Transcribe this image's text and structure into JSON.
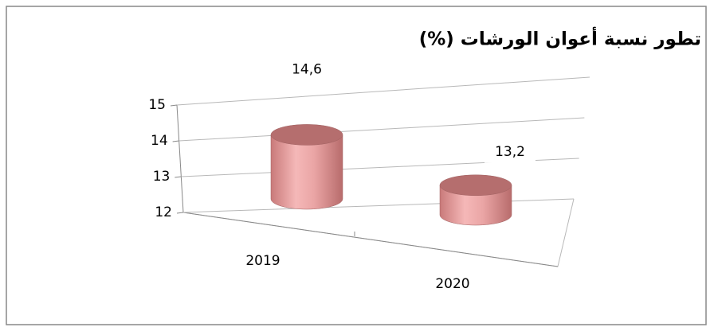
{
  "chart_data": {
    "type": "bar3d",
    "title": "تطور نسبة أعوان الورشات (%)",
    "categories": [
      "2019",
      "2020"
    ],
    "values": [
      14.6,
      13.2
    ],
    "value_labels": [
      "14,6",
      "13,2"
    ],
    "color": "#e6a0a0",
    "ylim": [
      12,
      15
    ],
    "yticks": [
      12,
      13,
      14,
      15
    ],
    "grid": true
  }
}
